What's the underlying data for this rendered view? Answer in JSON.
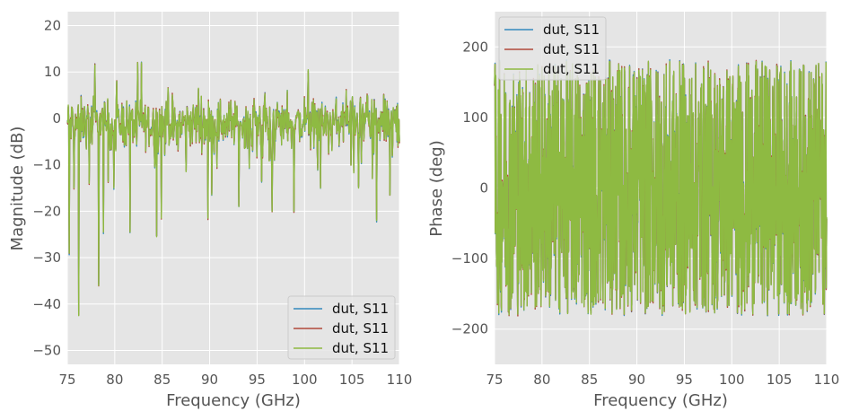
{
  "colors": {
    "plot_background": "#e5e5e5",
    "grid": "#ffffff",
    "series_blue": "#348abd",
    "series_red": "#b24a3b",
    "series_green": "#8eba42"
  },
  "chart_data": [
    {
      "type": "line",
      "xlabel": "Frequency (GHz)",
      "ylabel": "Magnitude (dB)",
      "xlim": [
        75,
        110
      ],
      "ylim": [
        -53,
        23
      ],
      "x_ticks": [
        "75",
        "80",
        "85",
        "90",
        "95",
        "100",
        "105",
        "110"
      ],
      "y_ticks": [
        "20",
        "10",
        "0",
        "−10",
        "−20",
        "−30",
        "−40",
        "−50"
      ],
      "grid": true,
      "legend_position": "lower-right",
      "noise": {
        "x_range": [
          75,
          110
        ],
        "points": 700,
        "center": -1,
        "spread": 2.5,
        "min": -22,
        "max": 6
      },
      "peaks": [
        {
          "x": 75.2,
          "y": -29
        },
        {
          "x": 75.7,
          "y": -15
        },
        {
          "x": 76.2,
          "y": -42.5
        },
        {
          "x": 77.3,
          "y": -14
        },
        {
          "x": 77.9,
          "y": 11.5
        },
        {
          "x": 78.3,
          "y": -36
        },
        {
          "x": 78.8,
          "y": -24.5
        },
        {
          "x": 79.9,
          "y": -15
        },
        {
          "x": 80.2,
          "y": 8
        },
        {
          "x": 81.6,
          "y": -24.5
        },
        {
          "x": 82.4,
          "y": 12
        },
        {
          "x": 82.8,
          "y": 12
        },
        {
          "x": 84.4,
          "y": -25.5
        },
        {
          "x": 84.9,
          "y": -21.5
        },
        {
          "x": 85.6,
          "y": 6.5
        },
        {
          "x": 88.8,
          "y": 6.5
        },
        {
          "x": 89.8,
          "y": -21.5
        },
        {
          "x": 91.1,
          "y": 4
        },
        {
          "x": 93.1,
          "y": -19
        },
        {
          "x": 94.7,
          "y": 4
        },
        {
          "x": 96.6,
          "y": -20
        },
        {
          "x": 98.2,
          "y": 6
        },
        {
          "x": 98.9,
          "y": -20
        },
        {
          "x": 100.4,
          "y": 10.5
        },
        {
          "x": 101.7,
          "y": -15
        },
        {
          "x": 104.4,
          "y": 6
        },
        {
          "x": 105.7,
          "y": -15
        },
        {
          "x": 106.6,
          "y": 5
        },
        {
          "x": 107.6,
          "y": -22
        },
        {
          "x": 109.0,
          "y": -16.5
        },
        {
          "x": 109.8,
          "y": 3
        }
      ],
      "series": [
        {
          "name": "dut, S11",
          "color": "#348abd"
        },
        {
          "name": "dut, S11",
          "color": "#b24a3b"
        },
        {
          "name": "dut, S11",
          "color": "#8eba42"
        }
      ]
    },
    {
      "type": "line",
      "xlabel": "Frequency (GHz)",
      "ylabel": "Phase (deg)",
      "xlim": [
        75,
        110
      ],
      "ylim": [
        -250,
        250
      ],
      "x_ticks": [
        "75",
        "80",
        "85",
        "90",
        "95",
        "100",
        "105",
        "110"
      ],
      "y_ticks": [
        "200",
        "100",
        "0",
        "−100",
        "−200"
      ],
      "grid": true,
      "legend_position": "upper-left",
      "noise": {
        "x_range": [
          75,
          110
        ],
        "points": 1400,
        "min": -180,
        "max": 180,
        "wrapped": true
      },
      "series": [
        {
          "name": "dut, S11",
          "color": "#348abd"
        },
        {
          "name": "dut, S11",
          "color": "#b24a3b"
        },
        {
          "name": "dut, S11",
          "color": "#8eba42"
        }
      ]
    }
  ]
}
